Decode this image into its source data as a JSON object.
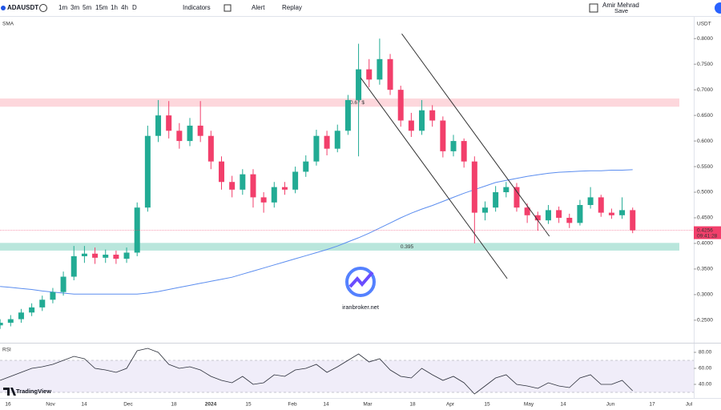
{
  "toolbar": {
    "symbol": "ADAUSDT",
    "intervals": [
      "1m",
      "3m",
      "5m",
      "15m",
      "1h",
      "4h",
      "D"
    ],
    "indicators": "Indicators",
    "alert": "Alert",
    "replay": "Replay",
    "user": "Amir Mehrad",
    "save": "Save"
  },
  "chart_data": {
    "type": "candlestick",
    "currency": "USDT",
    "open": [
      0.24,
      0.245,
      0.252,
      0.265,
      0.275,
      0.29,
      0.305,
      0.335,
      0.375,
      0.38,
      0.372,
      0.378,
      0.37,
      0.382,
      0.47,
      0.61,
      0.65,
      0.62,
      0.6,
      0.63,
      0.61,
      0.56,
      0.52,
      0.505,
      0.535,
      0.49,
      0.48,
      0.51,
      0.505,
      0.54,
      0.56,
      0.61,
      0.585,
      0.62,
      0.68,
      0.74,
      0.72,
      0.76,
      0.7,
      0.64,
      0.62,
      0.66,
      0.64,
      0.58,
      0.6,
      0.56,
      0.46,
      0.47,
      0.5,
      0.51,
      0.47,
      0.455,
      0.445,
      0.465,
      0.45,
      0.44,
      0.475,
      0.49,
      0.46,
      0.455,
      0.465
    ],
    "high": [
      0.252,
      0.26,
      0.272,
      0.283,
      0.298,
      0.313,
      0.345,
      0.395,
      0.395,
      0.392,
      0.388,
      0.386,
      0.392,
      0.48,
      0.63,
      0.68,
      0.678,
      0.635,
      0.645,
      0.678,
      0.62,
      0.57,
      0.532,
      0.545,
      0.545,
      0.5,
      0.52,
      0.52,
      0.55,
      0.572,
      0.622,
      0.62,
      0.632,
      0.69,
      0.79,
      0.76,
      0.8,
      0.77,
      0.708,
      0.655,
      0.68,
      0.67,
      0.648,
      0.612,
      0.605,
      0.57,
      0.482,
      0.512,
      0.52,
      0.518,
      0.478,
      0.462,
      0.475,
      0.472,
      0.458,
      0.485,
      0.51,
      0.495,
      0.468,
      0.49,
      0.47
    ],
    "low": [
      0.233,
      0.238,
      0.245,
      0.258,
      0.268,
      0.283,
      0.298,
      0.328,
      0.362,
      0.36,
      0.362,
      0.36,
      0.362,
      0.375,
      0.462,
      0.598,
      0.605,
      0.585,
      0.59,
      0.598,
      0.545,
      0.505,
      0.49,
      0.495,
      0.47,
      0.46,
      0.47,
      0.495,
      0.498,
      0.53,
      0.552,
      0.572,
      0.578,
      0.612,
      0.57,
      0.705,
      0.71,
      0.69,
      0.628,
      0.608,
      0.612,
      0.628,
      0.568,
      0.57,
      0.548,
      0.4,
      0.445,
      0.462,
      0.49,
      0.462,
      0.44,
      0.425,
      0.438,
      0.44,
      0.43,
      0.435,
      0.468,
      0.452,
      0.448,
      0.448,
      0.42
    ],
    "close": [
      0.245,
      0.252,
      0.265,
      0.275,
      0.29,
      0.305,
      0.335,
      0.375,
      0.38,
      0.372,
      0.378,
      0.37,
      0.382,
      0.47,
      0.61,
      0.65,
      0.62,
      0.6,
      0.63,
      0.61,
      0.56,
      0.52,
      0.505,
      0.535,
      0.49,
      0.48,
      0.51,
      0.505,
      0.54,
      0.56,
      0.61,
      0.585,
      0.62,
      0.68,
      0.74,
      0.72,
      0.76,
      0.7,
      0.64,
      0.62,
      0.66,
      0.64,
      0.58,
      0.6,
      0.56,
      0.46,
      0.47,
      0.5,
      0.51,
      0.47,
      0.455,
      0.445,
      0.465,
      0.45,
      0.44,
      0.475,
      0.49,
      0.46,
      0.455,
      0.465,
      0.4256
    ],
    "up_color": "#22ab94",
    "down_color": "#f23f6b",
    "ylim": [
      0.206,
      0.841
    ],
    "yticks": [
      {
        "value": 0.25,
        "label": "0.2500"
      },
      {
        "value": 0.3,
        "label": "0.3000"
      },
      {
        "value": 0.35,
        "label": "0.3500"
      },
      {
        "value": 0.4,
        "label": "0.4000"
      },
      {
        "value": 0.45,
        "label": "0.4500"
      },
      {
        "value": 0.5,
        "label": "0.5000"
      },
      {
        "value": 0.55,
        "label": "0.5500"
      },
      {
        "value": 0.6,
        "label": "0.6000"
      },
      {
        "value": 0.65,
        "label": "0.6500"
      },
      {
        "value": 0.7,
        "label": "0.7000"
      },
      {
        "value": 0.75,
        "label": "0.7500"
      },
      {
        "value": 0.8,
        "label": "0.8000"
      }
    ],
    "x_labels": [
      "16",
      "Nov",
      "14",
      "Dec",
      "18",
      "2024",
      "15",
      "Feb",
      "14",
      "Mar",
      "18",
      "Apr",
      "15",
      "May",
      "14",
      "Jun",
      "17",
      "Jul"
    ],
    "sma": {
      "name": "SMA",
      "color": "#5b8def",
      "values": [
        0.316,
        0.314,
        0.312,
        0.31,
        0.307,
        0.305,
        0.303,
        0.301,
        0.301,
        0.301,
        0.301,
        0.301,
        0.301,
        0.301,
        0.303,
        0.306,
        0.31,
        0.314,
        0.318,
        0.322,
        0.326,
        0.33,
        0.334,
        0.34,
        0.346,
        0.352,
        0.358,
        0.364,
        0.37,
        0.376,
        0.382,
        0.388,
        0.395,
        0.403,
        0.411,
        0.42,
        0.43,
        0.44,
        0.45,
        0.459,
        0.467,
        0.474,
        0.482,
        0.49,
        0.498,
        0.505,
        0.512,
        0.519,
        0.523,
        0.527,
        0.531,
        0.534,
        0.537,
        0.539,
        0.54,
        0.541,
        0.542,
        0.542,
        0.543,
        0.543,
        0.544
      ]
    },
    "zones": [
      {
        "label": "0.67 $",
        "from": 0.667,
        "to": 0.683,
        "color": "#fdd7dc"
      },
      {
        "label": "0.395",
        "from": 0.386,
        "to": 0.401,
        "color": "#b9e6dc"
      }
    ],
    "trendlines": [
      {
        "x": [
          34.2,
          48.1
        ],
        "y": [
          0.7234,
          0.3313
        ]
      },
      {
        "x": [
          38.1,
          52.1
        ],
        "y": [
          0.8094,
          0.414
        ]
      }
    ],
    "last_price": 0.4256,
    "countdown": "09:41:28",
    "rsi": {
      "name": "RSI",
      "color": "#2a2e39",
      "values": [
        45,
        50,
        55,
        60,
        62,
        65,
        70,
        75,
        72,
        60,
        58,
        55,
        60,
        82,
        85,
        80,
        65,
        60,
        62,
        58,
        50,
        45,
        42,
        50,
        40,
        42,
        52,
        50,
        58,
        60,
        65,
        55,
        62,
        70,
        78,
        68,
        72,
        58,
        50,
        48,
        60,
        52,
        45,
        50,
        42,
        28,
        38,
        48,
        52,
        40,
        38,
        35,
        42,
        38,
        36,
        48,
        52,
        40,
        40,
        45,
        32
      ],
      "ylim": [
        25,
        88
      ],
      "band": [
        30,
        70
      ],
      "yticks": [
        {
          "value": 80,
          "label": "80.00"
        },
        {
          "value": 60,
          "label": "60.00"
        },
        {
          "value": 40,
          "label": "40.00"
        }
      ]
    },
    "watermark": "iranbroker.net",
    "brand": "TradingView"
  }
}
